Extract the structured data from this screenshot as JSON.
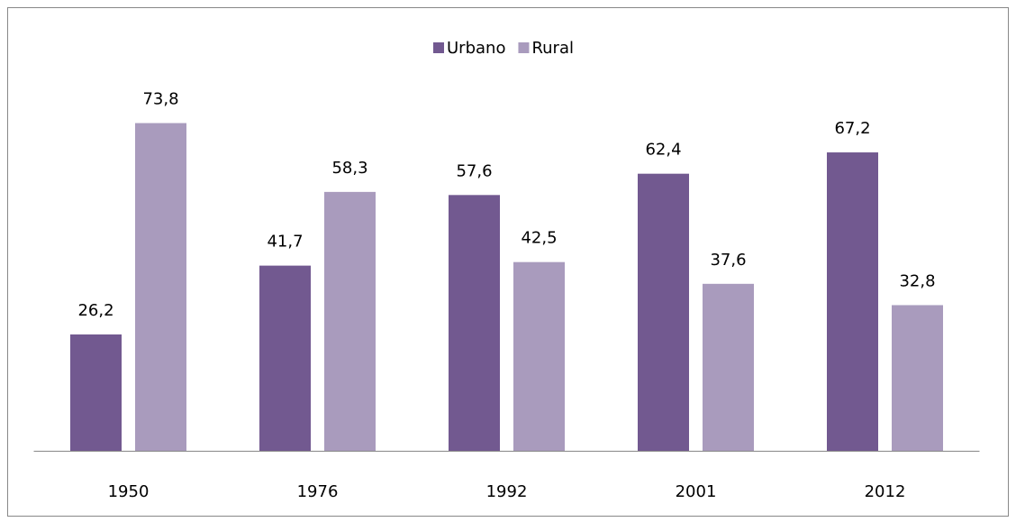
{
  "chart_data": {
    "type": "bar",
    "categories": [
      "1950",
      "1976",
      "1992",
      "2001",
      "2012"
    ],
    "series": [
      {
        "name": "Urbano",
        "color": "#725990",
        "values": [
          26.2,
          41.7,
          57.6,
          62.4,
          67.2
        ],
        "value_labels": [
          "26,2",
          "41,7",
          "57,6",
          "62,4",
          "67,2"
        ]
      },
      {
        "name": "Rural",
        "color": "#a99bbd",
        "values": [
          73.8,
          58.3,
          42.5,
          37.6,
          32.8
        ],
        "value_labels": [
          "73,8",
          "58,3",
          "42,5",
          "37,6",
          "32,8"
        ]
      }
    ],
    "ylim": [
      0,
      80
    ],
    "legend": "top"
  }
}
